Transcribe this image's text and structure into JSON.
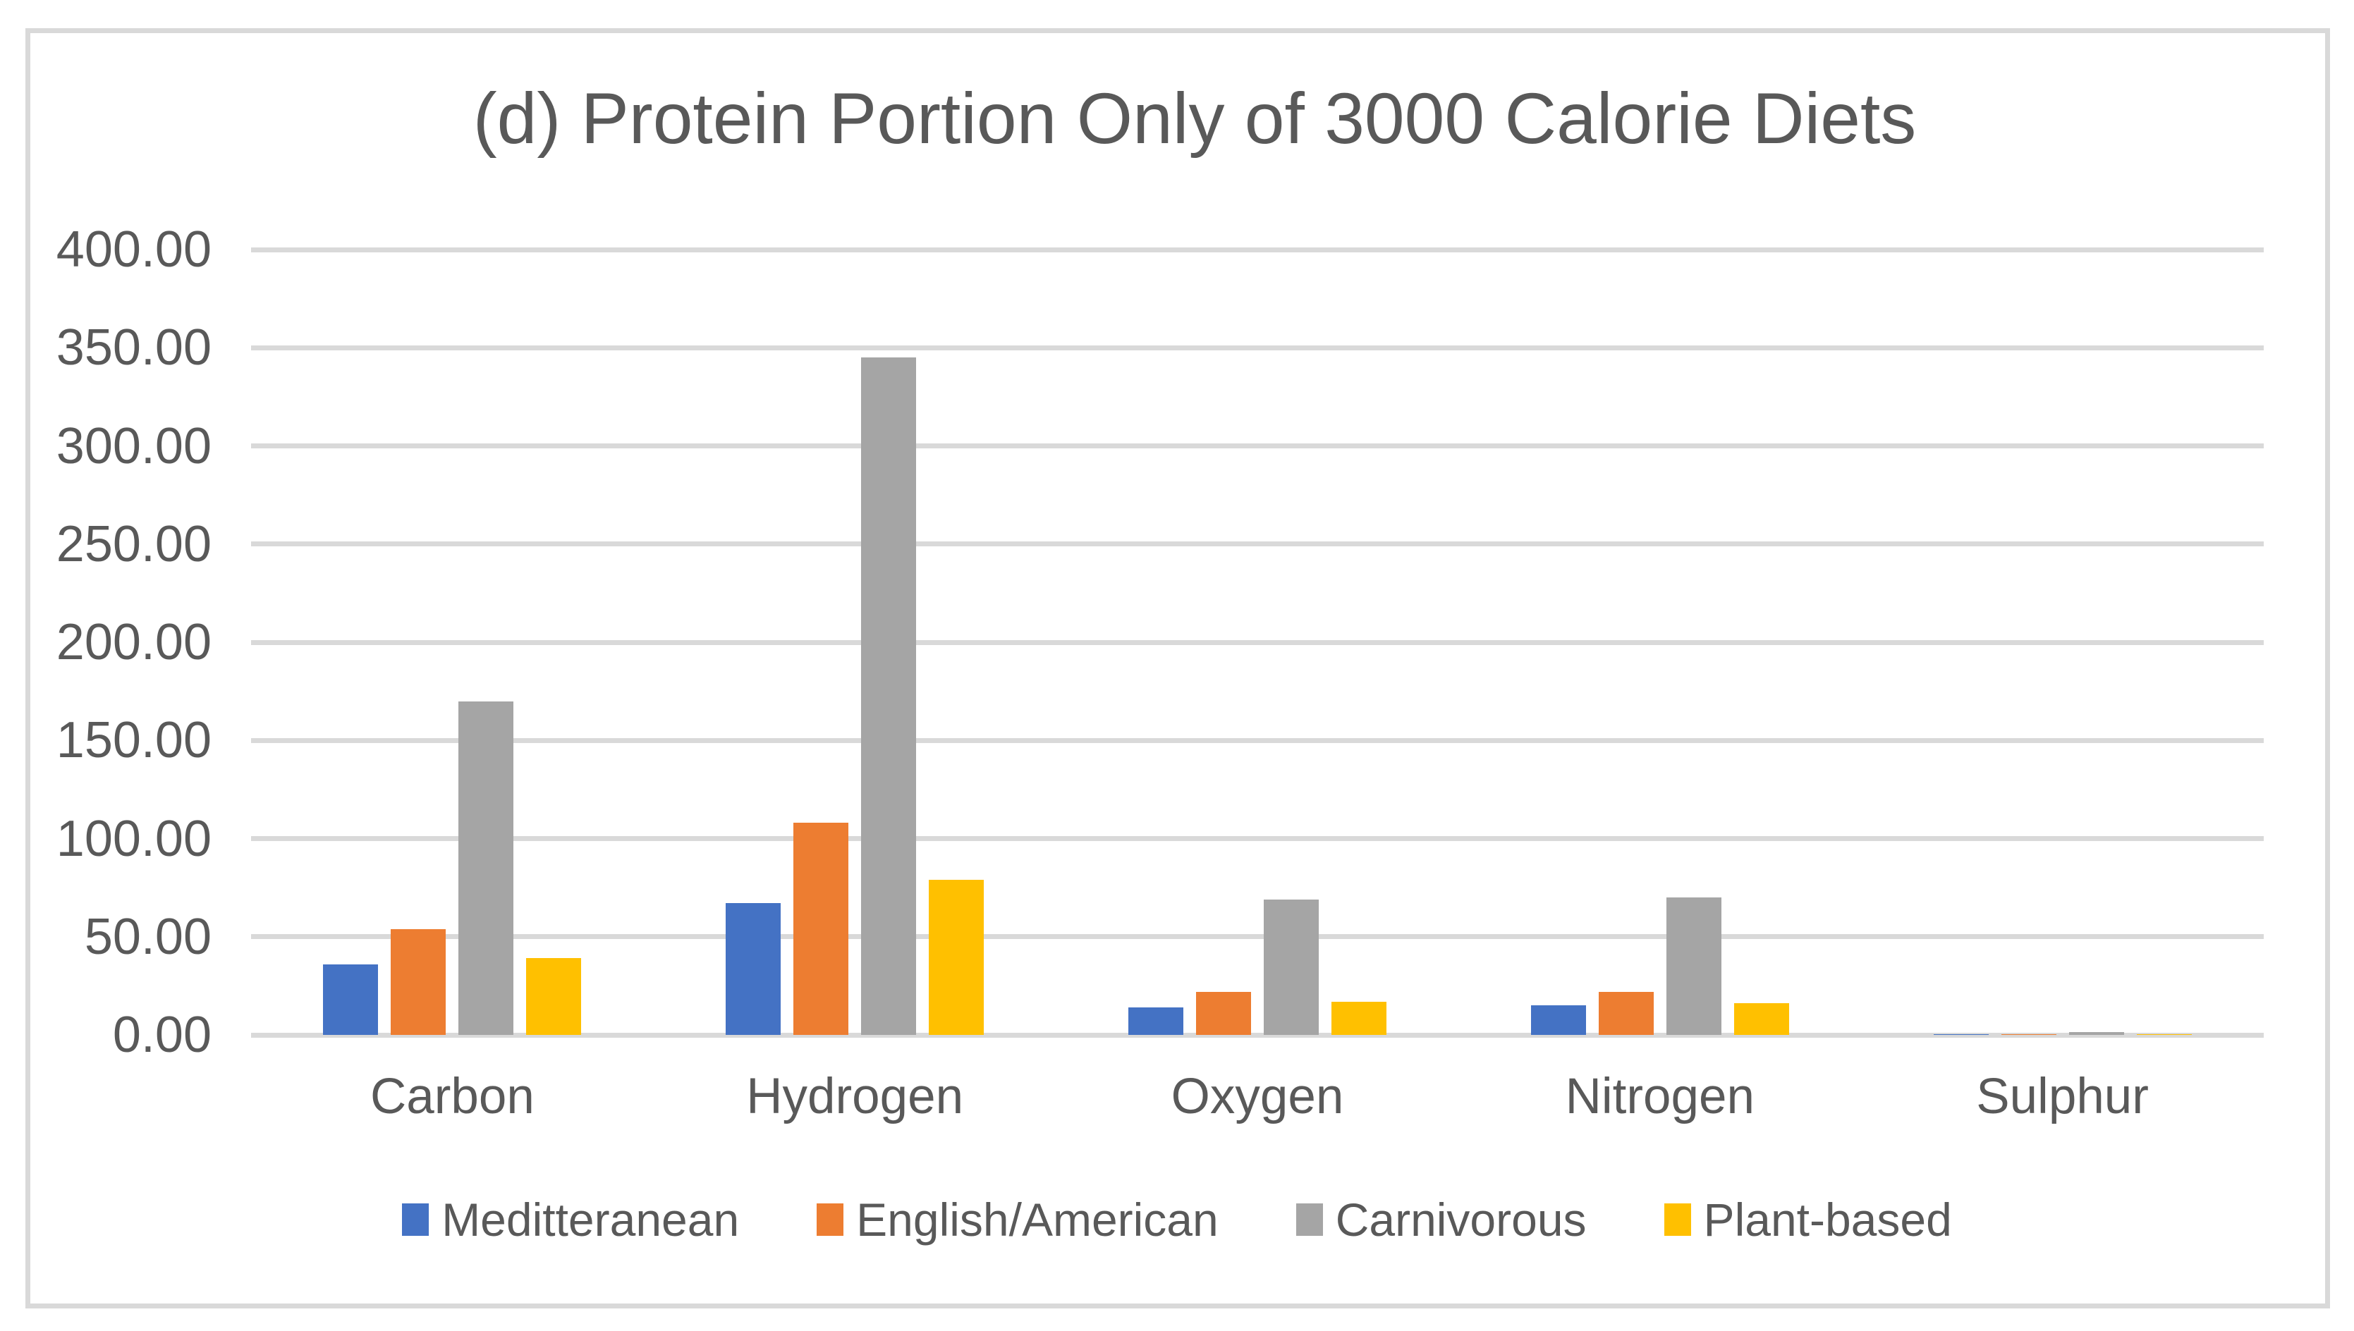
{
  "page": {
    "background_color": "#FFFFFF",
    "frame_border_color": "#D9D9D9"
  },
  "chart_data": {
    "type": "bar",
    "title": "(d) Protein Portion Only of 3000 Calorie Diets",
    "xlabel": "",
    "ylabel": "",
    "categories": [
      "Carbon",
      "Hydrogen",
      "Oxygen",
      "Nitrogen",
      "Sulphur"
    ],
    "series": [
      {
        "name": "Meditteranean",
        "color": "#4472C4",
        "values": [
          36,
          67,
          14,
          15,
          0.3
        ]
      },
      {
        "name": "English/American",
        "color": "#ED7D31",
        "values": [
          54,
          108,
          22,
          22,
          0.4
        ]
      },
      {
        "name": "Carnivorous",
        "color": "#A5A5A5",
        "values": [
          170,
          345,
          69,
          70,
          1.5
        ]
      },
      {
        "name": "Plant-based",
        "color": "#FFC000",
        "values": [
          39,
          79,
          17,
          16,
          0.3
        ]
      }
    ],
    "ylim": [
      0,
      400
    ],
    "y_tick_step": 50,
    "y_tick_labels": [
      "0.00",
      "50.00",
      "100.00",
      "150.00",
      "200.00",
      "250.00",
      "300.00",
      "350.00",
      "400.00"
    ],
    "grid": true,
    "gridline_color": "#D9D9D9",
    "text_color": "#595959",
    "legend_position": "bottom"
  }
}
